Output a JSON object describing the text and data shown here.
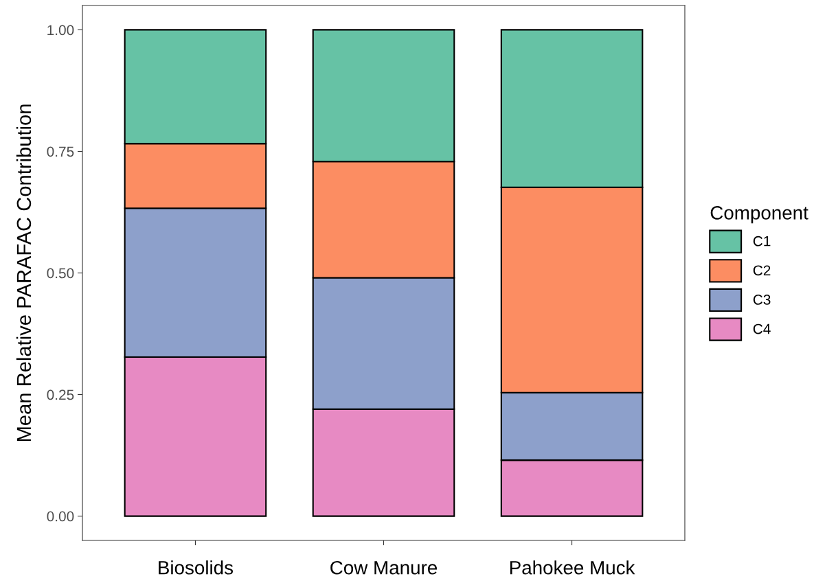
{
  "chart_data": {
    "type": "bar",
    "stacked": true,
    "ylabel": "Mean Relative PARAFAC Contribution",
    "legend_title": "Component",
    "legend": "right",
    "categories": [
      "Biosolids",
      "Cow Manure",
      "Pahokee Muck"
    ],
    "series": [
      {
        "name": "C4",
        "color": "#e78ac3",
        "values": [
          0.327,
          0.22,
          0.115
        ]
      },
      {
        "name": "C3",
        "color": "#8da0cb",
        "values": [
          0.306,
          0.27,
          0.139
        ]
      },
      {
        "name": "C2",
        "color": "#fc8d62",
        "values": [
          0.133,
          0.239,
          0.422
        ]
      },
      {
        "name": "C1",
        "color": "#66c2a5",
        "values": [
          0.234,
          0.271,
          0.324
        ]
      }
    ],
    "ylim": [
      -0.05,
      1.05
    ],
    "yticks": [
      {
        "value": 0,
        "label": "0.00"
      },
      {
        "value": 0.25,
        "label": "0.25"
      },
      {
        "value": 0.5,
        "label": "0.50"
      },
      {
        "value": 0.75,
        "label": "0.75"
      },
      {
        "value": 1,
        "label": "1.00"
      }
    ],
    "grid": false
  }
}
